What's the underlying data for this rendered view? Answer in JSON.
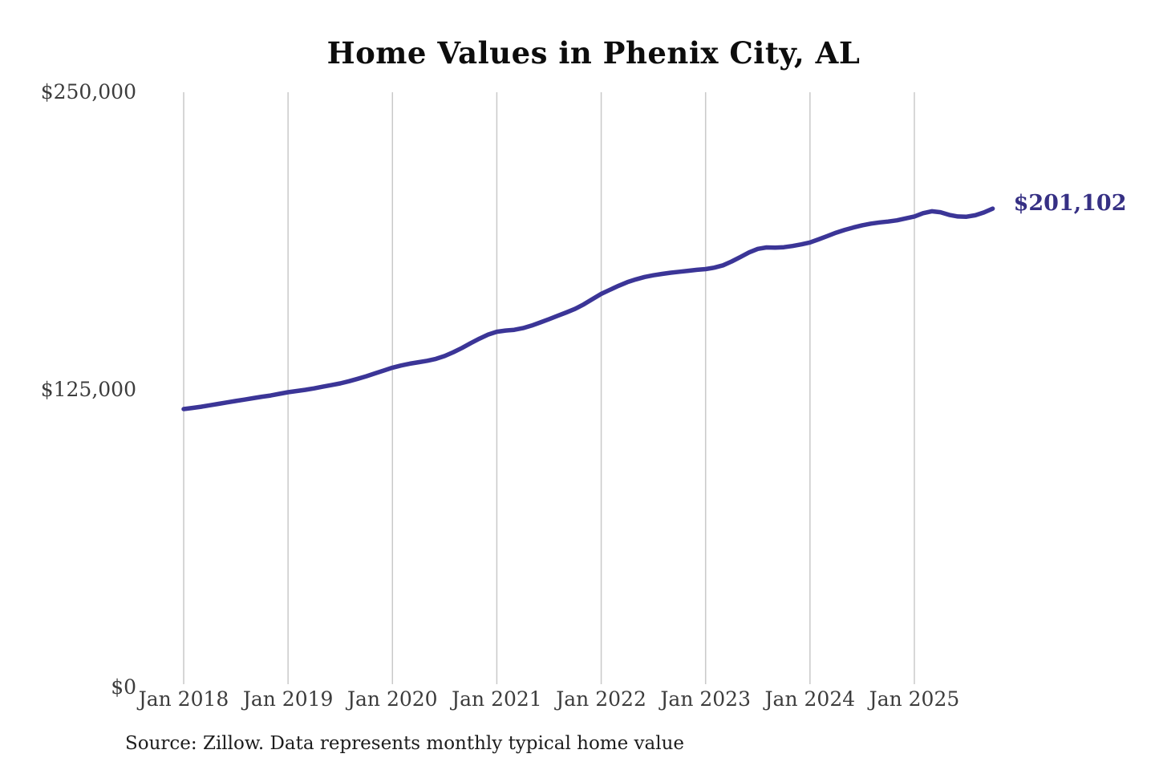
{
  "title": "Home Values in Phenix City, AL",
  "source_note": "Source: Zillow. Data represents monthly typical home value",
  "end_label": "$201,102",
  "colors": {
    "line": "#3b3597",
    "end_label": "#363084",
    "grid": "#c9c9c9",
    "tick_text": "#3c3c3c",
    "title_text": "#0d0d0d",
    "background": "#ffffff"
  },
  "chart_data": {
    "type": "line",
    "title": "Home Values in Phenix City, AL",
    "xlabel": "",
    "ylabel": "",
    "ylim": [
      0,
      250000
    ],
    "grid": "vertical-only",
    "legend": "none",
    "frequency": "monthly",
    "x_start": "2018-01",
    "x_end": "2025-10",
    "x_tick_labels": [
      "Jan 2018",
      "Jan 2019",
      "Jan 2020",
      "Jan 2021",
      "Jan 2022",
      "Jan 2023",
      "Jan 2024",
      "Jan 2025"
    ],
    "y_ticks": [
      {
        "label": "$250,000",
        "value": 250000
      },
      {
        "label": "$125,000",
        "value": 125000
      },
      {
        "label": "$0",
        "value": 0
      }
    ],
    "series_name": "Typical home value (USD)",
    "values": [
      116900,
      117400,
      117900,
      118500,
      119100,
      119700,
      120300,
      120900,
      121500,
      122100,
      122600,
      123300,
      124000,
      124500,
      125000,
      125600,
      126300,
      127000,
      127700,
      128600,
      129600,
      130700,
      131900,
      133100,
      134300,
      135200,
      136000,
      136600,
      137200,
      138000,
      139200,
      140800,
      142600,
      144600,
      146500,
      148200,
      149400,
      149900,
      150200,
      150900,
      152000,
      153300,
      154700,
      156100,
      157500,
      159000,
      160900,
      163100,
      165300,
      167000,
      168700,
      170200,
      171400,
      172400,
      173100,
      173700,
      174200,
      174600,
      175000,
      175400,
      175700,
      176300,
      177300,
      178900,
      180800,
      182700,
      184200,
      184800,
      184700,
      184900,
      185400,
      186100,
      186900,
      188200,
      189600,
      191000,
      192200,
      193200,
      194100,
      194800,
      195300,
      195700,
      196200,
      197000,
      197800,
      199200,
      200000,
      199600,
      198500,
      197800,
      197700,
      198300,
      199500,
      201102
    ],
    "end_value": 201102,
    "end_value_label": "$201,102"
  }
}
